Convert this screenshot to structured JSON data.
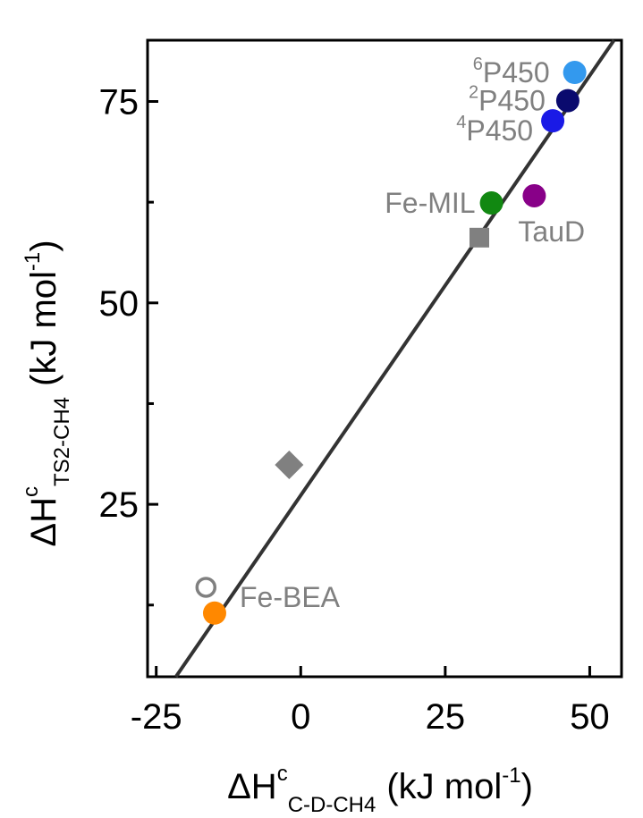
{
  "chart_data": {
    "type": "scatter",
    "title": "",
    "x_axis": {
      "label_main": "ΔH",
      "label_sup": "c",
      "label_sub": "C-D-CH4",
      "label_units": "(kJ mol",
      "label_units_sup": "-1",
      "label_units_close": ")",
      "range": [
        -26.5,
        55.5
      ],
      "ticks": [
        -25,
        0,
        25,
        50
      ],
      "tick_labels": [
        "-25",
        "0",
        "25",
        "50"
      ]
    },
    "y_axis": {
      "label_main": "ΔH",
      "label_sup": "c",
      "label_sub": "TS2-CH4",
      "label_units": "(kJ mol",
      "label_units_sup": "-1",
      "label_units_close": ")",
      "range": [
        3.6,
        82.6
      ],
      "ticks": [
        25,
        50,
        75
      ],
      "tick_labels": [
        "25",
        "50",
        "75"
      ],
      "minor_ticks": [
        12.5,
        37.5,
        62.5
      ]
    },
    "fit_line": {
      "x": [
        -21.6,
        54.2
      ],
      "y": [
        3.6,
        82.6
      ],
      "color": "#333333"
    },
    "points": [
      {
        "name": "6P450",
        "sup": "6",
        "text": "P450",
        "x": 47.4,
        "y": 78.6,
        "marker": "circle",
        "color": "#3399ee"
      },
      {
        "name": "2P450",
        "sup": "2",
        "text": "P450",
        "x": 46.2,
        "y": 75.1,
        "marker": "circle",
        "color": "#0a0a6e"
      },
      {
        "name": "4P450",
        "sup": "4",
        "text": "P450",
        "x": 43.6,
        "y": 72.6,
        "marker": "circle",
        "color": "#1a1ae6"
      },
      {
        "name": "Fe-MIL",
        "sup": "",
        "text": "Fe-MIL",
        "x": 33.0,
        "y": 62.4,
        "marker": "circle",
        "color": "#118811"
      },
      {
        "name": "TauD",
        "sup": "",
        "text": "TauD",
        "x": 40.4,
        "y": 63.3,
        "marker": "circle",
        "color": "#880088"
      },
      {
        "name": "square",
        "sup": "",
        "text": "",
        "x": 30.9,
        "y": 58.1,
        "marker": "square",
        "color": "#808080"
      },
      {
        "name": "diamond",
        "sup": "",
        "text": "",
        "x": -2.0,
        "y": 29.9,
        "marker": "diamond",
        "color": "#808080"
      },
      {
        "name": "open-circle",
        "sup": "",
        "text": "",
        "x": -16.4,
        "y": 14.7,
        "marker": "open-circle",
        "color": "#808080"
      },
      {
        "name": "Fe-BEA",
        "sup": "",
        "text": "Fe-BEA",
        "x": -14.9,
        "y": 11.5,
        "marker": "circle",
        "color": "#ff8800"
      }
    ]
  }
}
